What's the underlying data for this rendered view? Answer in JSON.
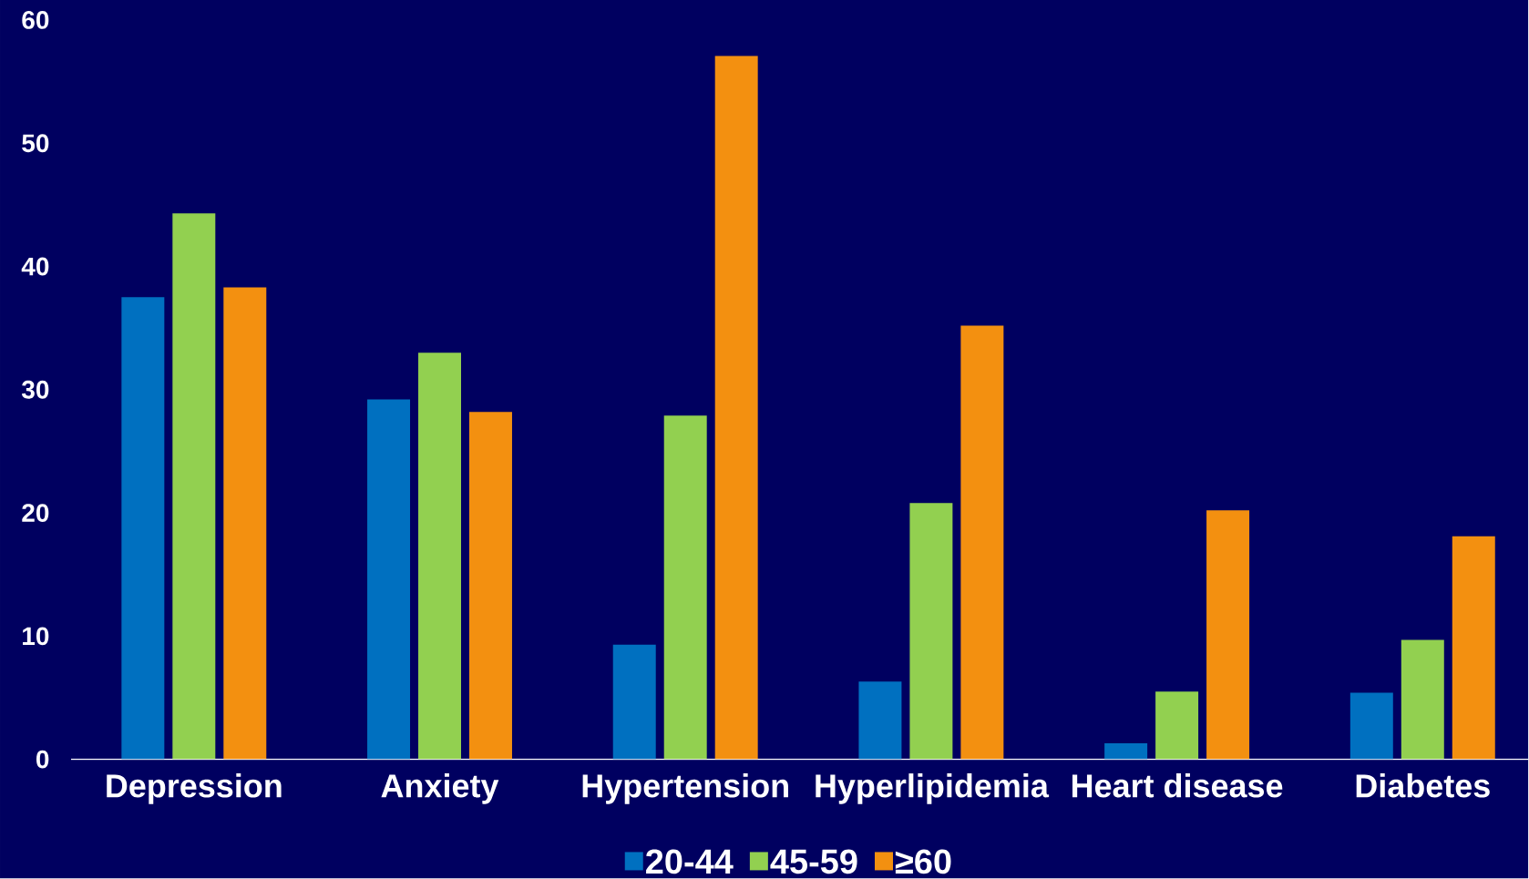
{
  "chart_data": {
    "type": "bar",
    "categories": [
      "Depression",
      "Anxiety",
      "Hypertension",
      "Hyperlipidemia",
      "Heart disease",
      "Diabetes"
    ],
    "series": [
      {
        "name": "20-44",
        "color": "#0070c0",
        "values": [
          37.5,
          29.2,
          9.3,
          6.3,
          1.3,
          5.4
        ]
      },
      {
        "name": "45-59",
        "color": "#92d050",
        "values": [
          44.3,
          33.0,
          27.9,
          20.8,
          5.5,
          9.7
        ]
      },
      {
        "name": "≥60",
        "color": "#f39010",
        "values": [
          38.3,
          28.2,
          57.1,
          35.2,
          20.2,
          18.1
        ]
      }
    ],
    "ylim": [
      0,
      60
    ],
    "yticks": [
      0,
      10,
      20,
      30,
      40,
      50,
      60
    ],
    "grid": false,
    "legend": "bottom"
  }
}
